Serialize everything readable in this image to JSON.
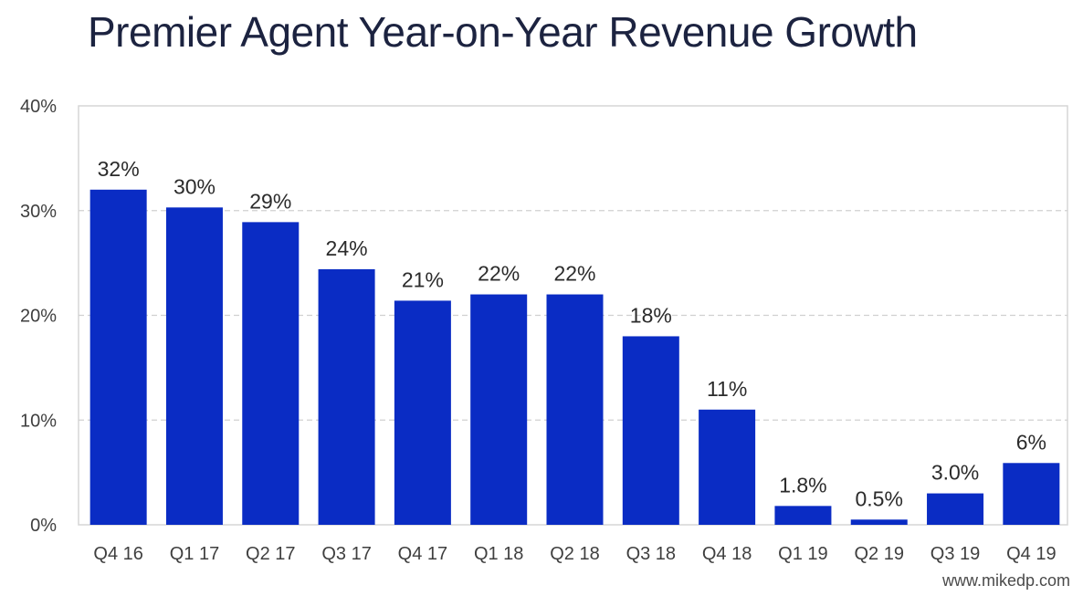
{
  "chart_data": {
    "type": "bar",
    "title": "Premier Agent Year-on-Year Revenue Growth",
    "xlabel": "",
    "ylabel": "",
    "categories": [
      "Q4 16",
      "Q1 17",
      "Q2 17",
      "Q3 17",
      "Q4 17",
      "Q1 18",
      "Q2 18",
      "Q3 18",
      "Q4 18",
      "Q1 19",
      "Q2 19",
      "Q3 19",
      "Q4 19"
    ],
    "values": [
      32,
      30.3,
      28.9,
      24.4,
      21.4,
      22,
      22,
      18,
      11,
      1.8,
      0.5,
      3.0,
      5.9
    ],
    "data_labels": [
      "32%",
      "30%",
      "29%",
      "24%",
      "21%",
      "22%",
      "22%",
      "18%",
      "11%",
      "1.8%",
      "0.5%",
      "3.0%",
      "6%"
    ],
    "ylim": [
      0,
      40
    ],
    "yticks": [
      0,
      10,
      20,
      30,
      40
    ],
    "ytick_labels": [
      "0%",
      "10%",
      "20%",
      "30%",
      "40%"
    ],
    "grid": true,
    "bar_color": "#0a2cc4"
  },
  "watermark": "www.mikedp.com"
}
